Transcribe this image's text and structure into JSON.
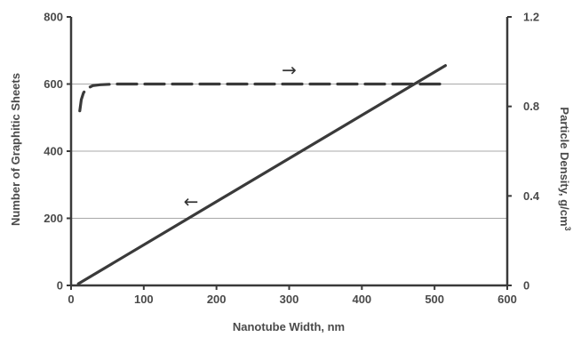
{
  "chart_data": {
    "type": "line",
    "title": "",
    "xlabel": "Nanotube Width, nm",
    "ylabel_left": "Number of Graphitic Sheets",
    "ylabel_right_base": "Particle Density, g/cm",
    "ylabel_right_sup": "3",
    "xlim": [
      0,
      600
    ],
    "ylim_left": [
      0,
      800
    ],
    "ylim_right": [
      0,
      1.2
    ],
    "x_ticks": [
      "0",
      "100",
      "200",
      "300",
      "400",
      "500",
      "600"
    ],
    "y_left_ticks": [
      "0",
      "200",
      "400",
      "600",
      "800"
    ],
    "y_right_ticks": [
      "0",
      "0.4",
      "0.8",
      "1.2"
    ],
    "grid": "horizontal",
    "series": [
      {
        "axis": "left",
        "style": "solid",
        "color": "#3a3a3a",
        "x": [
          10,
          515
        ],
        "y": [
          5,
          655
        ]
      },
      {
        "axis": "right",
        "style": "dashed",
        "color": "#3a3a3a",
        "x": [
          12,
          14,
          17,
          20,
          25,
          30,
          40,
          60,
          100,
          200,
          300,
          400,
          515
        ],
        "y": [
          0.78,
          0.83,
          0.86,
          0.875,
          0.885,
          0.893,
          0.897,
          0.9,
          0.9,
          0.9,
          0.9,
          0.9,
          0.9
        ]
      }
    ],
    "annotations": [
      {
        "text": "→",
        "x": 300,
        "y": 640,
        "axis": "left"
      },
      {
        "text": "←",
        "x": 165,
        "y": 248,
        "axis": "left"
      }
    ]
  }
}
